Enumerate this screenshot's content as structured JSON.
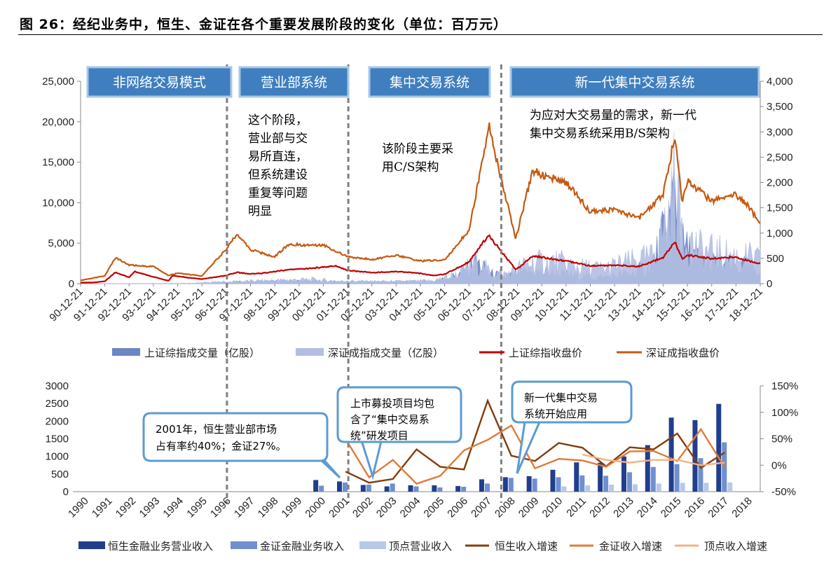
{
  "figure_title": "图 26：经纪业务中，恒生、金证在各个重要发展阶段的变化（单位：百万元）",
  "colors": {
    "sh_volume": "#6f86c4",
    "sz_volume": "#b2bfe2",
    "sh_index": "#c00000",
    "sz_index": "#c55a11",
    "stage_fill": "#3f7fbf",
    "stage_border": "#a9c7e8",
    "bar_hs": "#203e8c",
    "bar_jz": "#6f8fcf",
    "bar_dd": "#b9c8e8",
    "line_hs": "#843c0c",
    "line_jz": "#e07b39",
    "line_dd": "#f4b183",
    "callout_border": "#5b9bd5"
  },
  "chart_data": [
    {
      "type": "area+line",
      "title": "",
      "y_left": {
        "ylim": [
          0,
          25000
        ],
        "ticks": [
          "0",
          "5,000",
          "10,000",
          "15,000",
          "20,000",
          "25,000"
        ]
      },
      "y_right": {
        "ylim": [
          0,
          4000
        ],
        "ticks": [
          "0",
          "500",
          "1,000",
          "1,500",
          "2,000",
          "2,500",
          "3,000",
          "3,500",
          "4,000"
        ]
      },
      "x_ticks": [
        "90-12-21",
        "91-12-21",
        "92-12-21",
        "93-12-21",
        "94-12-21",
        "95-12-21",
        "96-12-21",
        "97-12-21",
        "98-12-21",
        "99-12-21",
        "00-12-21",
        "01-12-21",
        "02-12-21",
        "03-12-21",
        "04-12-21",
        "05-12-21",
        "06-12-21",
        "07-12-21",
        "08-12-21",
        "09-12-21",
        "10-12-21",
        "11-12-21",
        "12-12-21",
        "13-12-21",
        "14-12-21",
        "15-12-21",
        "16-12-21",
        "17-12-21",
        "18-12-21"
      ],
      "stage_dividers_year": [
        1997.0,
        2002.0,
        2008.3
      ],
      "stages": [
        "非网络交易模式",
        "营业部系统",
        "集中交易系统",
        "新一代集中交易系统"
      ],
      "annotations": [
        [
          "这个阶段，",
          "营业部与交",
          "易所直连，",
          "但系统建设",
          "重复等问题",
          "明显"
        ],
        [
          "该阶段主要采",
          "用C/S架构"
        ],
        [
          "为应对大交易量的需求，新一代",
          "集中交易系统采用B/S架构"
        ]
      ],
      "series": [
        {
          "name": "上证综指成交量（亿股）",
          "kind": "area",
          "axis": "right",
          "color_key": "sh_volume",
          "points": [
            [
              1990.97,
              0
            ],
            [
              1995.5,
              5
            ],
            [
              1996.5,
              25
            ],
            [
              1997.4,
              45
            ],
            [
              1999.5,
              70
            ],
            [
              2000.5,
              75
            ],
            [
              2001.5,
              50
            ],
            [
              2004.0,
              45
            ],
            [
              2005.5,
              60
            ],
            [
              2006.5,
              220
            ],
            [
              2007.3,
              580
            ],
            [
              2007.5,
              450
            ],
            [
              2007.9,
              250
            ],
            [
              2008.5,
              180
            ],
            [
              2009.5,
              330
            ],
            [
              2010.5,
              280
            ],
            [
              2011.5,
              210
            ],
            [
              2012.5,
              170
            ],
            [
              2013.5,
              260
            ],
            [
              2014.5,
              480
            ],
            [
              2014.9,
              1150
            ],
            [
              2015.3,
              1900
            ],
            [
              2015.45,
              2750
            ],
            [
              2015.8,
              1000
            ],
            [
              2016.5,
              600
            ],
            [
              2017.5,
              500
            ],
            [
              2018.5,
              450
            ],
            [
              2018.97,
              400
            ]
          ]
        },
        {
          "name": "深证成指成交量（亿股）",
          "kind": "area",
          "axis": "right",
          "color_key": "sz_volume",
          "points": [
            [
              1990.97,
              0
            ],
            [
              1995.5,
              10
            ],
            [
              1996.5,
              40
            ],
            [
              1997.4,
              60
            ],
            [
              1999.5,
              100
            ],
            [
              2000.5,
              110
            ],
            [
              2001.5,
              70
            ],
            [
              2004.0,
              60
            ],
            [
              2005.5,
              80
            ],
            [
              2006.5,
              250
            ],
            [
              2007.3,
              560
            ],
            [
              2007.5,
              480
            ],
            [
              2007.9,
              300
            ],
            [
              2008.5,
              260
            ],
            [
              2009.5,
              560
            ],
            [
              2010.5,
              600
            ],
            [
              2011.5,
              450
            ],
            [
              2012.5,
              400
            ],
            [
              2013.5,
              560
            ],
            [
              2014.5,
              700
            ],
            [
              2014.9,
              1300
            ],
            [
              2015.3,
              2000
            ],
            [
              2015.45,
              2900
            ],
            [
              2015.8,
              1300
            ],
            [
              2016.5,
              900
            ],
            [
              2017.5,
              780
            ],
            [
              2018.5,
              700
            ],
            [
              2018.97,
              620
            ]
          ]
        },
        {
          "name": "上证综指收盘价",
          "kind": "line",
          "axis": "left",
          "color_key": "sh_index",
          "points": [
            [
              1990.97,
              127
            ],
            [
              1991.5,
              140
            ],
            [
              1991.97,
              290
            ],
            [
              1992.4,
              1400
            ],
            [
              1992.97,
              780
            ],
            [
              1993.2,
              1500
            ],
            [
              1993.97,
              830
            ],
            [
              1994.6,
              340
            ],
            [
              1994.75,
              1000
            ],
            [
              1995.5,
              700
            ],
            [
              1995.97,
              560
            ],
            [
              1996.95,
              1000
            ],
            [
              1997.4,
              1400
            ],
            [
              1997.97,
              1200
            ],
            [
              1998.5,
              1300
            ],
            [
              1999.5,
              1700
            ],
            [
              2000.5,
              1900
            ],
            [
              2001.5,
              2200
            ],
            [
              2001.97,
              1650
            ],
            [
              2002.97,
              1350
            ],
            [
              2003.97,
              1500
            ],
            [
              2004.97,
              1260
            ],
            [
              2005.5,
              1000
            ],
            [
              2005.97,
              1160
            ],
            [
              2006.97,
              2680
            ],
            [
              2007.8,
              6100
            ],
            [
              2007.97,
              5260
            ],
            [
              2008.9,
              1700
            ],
            [
              2009.6,
              3400
            ],
            [
              2009.97,
              3270
            ],
            [
              2010.97,
              2800
            ],
            [
              2011.97,
              2200
            ],
            [
              2012.97,
              2270
            ],
            [
              2013.97,
              2110
            ],
            [
              2014.97,
              3240
            ],
            [
              2015.45,
              5170
            ],
            [
              2015.75,
              3100
            ],
            [
              2015.97,
              3540
            ],
            [
              2016.97,
              3100
            ],
            [
              2017.97,
              3300
            ],
            [
              2018.5,
              2800
            ],
            [
              2018.97,
              2480
            ]
          ]
        },
        {
          "name": "深证成指收盘价",
          "kind": "line",
          "axis": "left",
          "color_key": "sz_index",
          "points": [
            [
              1990.97,
              396
            ],
            [
              1991.97,
              963
            ],
            [
              1992.4,
              3200
            ],
            [
              1992.97,
              2300
            ],
            [
              1993.97,
              2100
            ],
            [
              1994.6,
              1000
            ],
            [
              1994.97,
              1300
            ],
            [
              1995.97,
              950
            ],
            [
              1996.95,
              4200
            ],
            [
              1997.4,
              6100
            ],
            [
              1997.97,
              4200
            ],
            [
              1998.97,
              3300
            ],
            [
              1999.5,
              4800
            ],
            [
              2000.97,
              4800
            ],
            [
              2001.97,
              3300
            ],
            [
              2002.97,
              3000
            ],
            [
              2003.97,
              3500
            ],
            [
              2004.97,
              2800
            ],
            [
              2005.97,
              2900
            ],
            [
              2006.97,
              6600
            ],
            [
              2007.8,
              19500
            ],
            [
              2007.97,
              17000
            ],
            [
              2008.9,
              5600
            ],
            [
              2009.6,
              14000
            ],
            [
              2009.97,
              13500
            ],
            [
              2010.97,
              12500
            ],
            [
              2011.97,
              8900
            ],
            [
              2012.97,
              9100
            ],
            [
              2013.97,
              8100
            ],
            [
              2014.97,
              11000
            ],
            [
              2015.45,
              18200
            ],
            [
              2015.75,
              10000
            ],
            [
              2015.97,
              12700
            ],
            [
              2016.97,
              10200
            ],
            [
              2017.97,
              11000
            ],
            [
              2018.5,
              9500
            ],
            [
              2018.97,
              7300
            ]
          ]
        }
      ]
    },
    {
      "type": "bar+line",
      "title": "",
      "categories": [
        "1990",
        "1991",
        "1992",
        "1993",
        "1994",
        "1995",
        "1996",
        "1997",
        "1998",
        "1999",
        "2000",
        "2001",
        "2002",
        "2003",
        "2004",
        "2005",
        "2006",
        "2007",
        "2008",
        "2009",
        "2010",
        "2011",
        "2012",
        "2013",
        "2014",
        "2015",
        "2016",
        "2017",
        "2018"
      ],
      "y_left": {
        "ylim": [
          0,
          3000
        ],
        "ticks": [
          "0",
          "500",
          "1000",
          "1500",
          "2000",
          "2500",
          "3000"
        ]
      },
      "y_right": {
        "ylim": [
          -50,
          150
        ],
        "ticks": [
          "-50%",
          "0%",
          "50%",
          "100%",
          "150%"
        ]
      },
      "stage_dividers_index": [
        6.5,
        11.5,
        17.5
      ],
      "series": [
        {
          "name": "恒生金融业务营业收入",
          "kind": "bar",
          "axis": "left",
          "color_key": "bar_hs",
          "values": [
            null,
            null,
            null,
            null,
            null,
            null,
            null,
            null,
            null,
            null,
            330,
            290,
            190,
            150,
            180,
            180,
            160,
            350,
            410,
            440,
            620,
            830,
            820,
            1000,
            1320,
            2100,
            2030,
            2490,
            null
          ]
        },
        {
          "name": "金证金融业务收入",
          "kind": "bar",
          "axis": "left",
          "color_key": "bar_jz",
          "values": [
            null,
            null,
            null,
            null,
            null,
            null,
            null,
            null,
            null,
            null,
            170,
            260,
            200,
            230,
            150,
            120,
            140,
            230,
            390,
            370,
            410,
            460,
            450,
            550,
            700,
            780,
            950,
            1400,
            null
          ]
        },
        {
          "name": "顶点营业收入",
          "kind": "bar",
          "axis": "left",
          "color_key": "bar_dd",
          "values": [
            null,
            null,
            null,
            null,
            null,
            null,
            null,
            null,
            null,
            null,
            null,
            null,
            null,
            null,
            null,
            null,
            null,
            null,
            null,
            null,
            150,
            180,
            200,
            210,
            230,
            250,
            250,
            260,
            null
          ]
        },
        {
          "name": "恒生收入增速",
          "kind": "line",
          "axis": "right",
          "color_key": "line_hs",
          "values": [
            null,
            null,
            null,
            null,
            null,
            null,
            null,
            null,
            null,
            null,
            null,
            -12,
            -33,
            -26,
            30,
            -3,
            -8,
            122,
            18,
            8,
            42,
            33,
            -2,
            34,
            30,
            60,
            -5,
            24,
            null
          ]
        },
        {
          "name": "金证收入增速",
          "kind": "line",
          "axis": "right",
          "color_key": "line_jz",
          "values": [
            null,
            null,
            null,
            null,
            null,
            null,
            null,
            null,
            null,
            null,
            null,
            50,
            -23,
            10,
            -35,
            -20,
            28,
            48,
            75,
            -6,
            12,
            9,
            -3,
            26,
            27,
            8,
            68,
            -4,
            null
          ]
        },
        {
          "name": "顶点收入增速",
          "kind": "line",
          "axis": "right",
          "color_key": "line_dd",
          "values": [
            null,
            null,
            null,
            null,
            null,
            null,
            null,
            null,
            null,
            null,
            null,
            null,
            null,
            null,
            null,
            null,
            null,
            null,
            null,
            null,
            null,
            20,
            10,
            5,
            10,
            10,
            0,
            5,
            null
          ]
        }
      ],
      "callouts": [
        {
          "lines": [
            "2001年，恒生营业部市场",
            "占有率约40%；金证27%。"
          ]
        },
        {
          "lines": [
            "上市募投项目均包",
            "含了“集中交易系",
            "统”研发项目"
          ]
        },
        {
          "lines": [
            "新一代集中交易",
            "系统开始应用"
          ]
        }
      ]
    }
  ]
}
